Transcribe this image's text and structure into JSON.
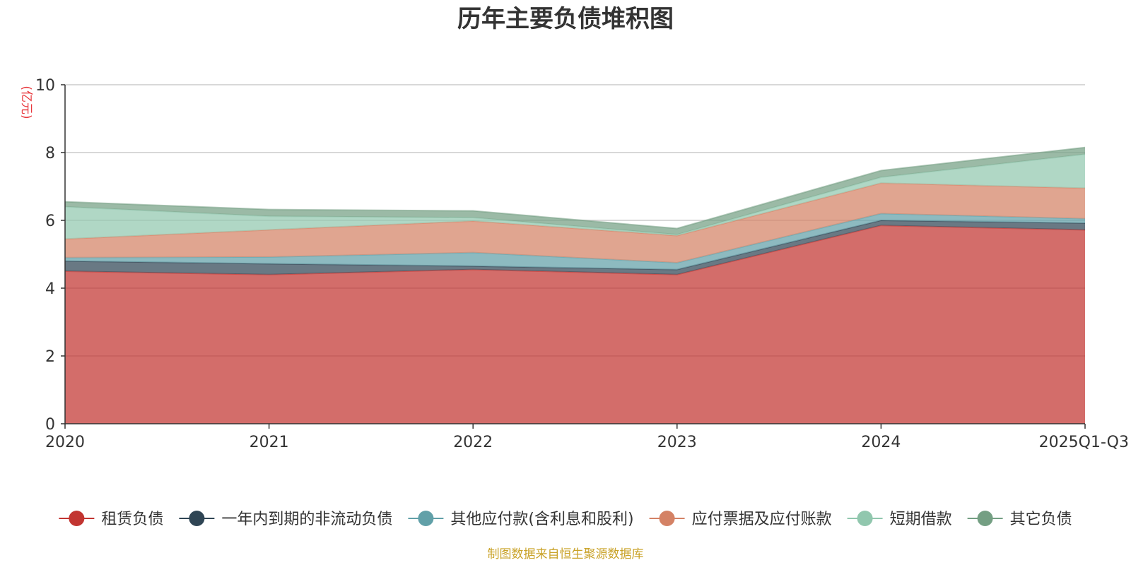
{
  "colors": {
    "source": "#c9a227",
    "unit": "#e8383d",
    "axis": "#333333",
    "grid": "#cccccc"
  },
  "chart_data": {
    "type": "area",
    "stacked": true,
    "title": "历年主要负债堆积图",
    "ylabel": "(亿元)",
    "ylim": [
      0,
      10
    ],
    "yticks": [
      0,
      2,
      4,
      6,
      8,
      10
    ],
    "grid": true,
    "legend_position": "bottom",
    "categories": [
      "2020",
      "2021",
      "2022",
      "2023",
      "2024",
      "2025Q1-Q3"
    ],
    "series": [
      {
        "name": "租赁负债",
        "color": "#c23531",
        "values": [
          4.5,
          4.4,
          4.55,
          4.4,
          5.85,
          5.72
        ]
      },
      {
        "name": "一年内到期的非流动负债",
        "color": "#2f4554",
        "values": [
          0.3,
          0.32,
          0.1,
          0.15,
          0.15,
          0.2
        ]
      },
      {
        "name": "其他应付款(含利息和股利)",
        "color": "#61a0a8",
        "values": [
          0.1,
          0.2,
          0.4,
          0.2,
          0.2,
          0.13
        ]
      },
      {
        "name": "应付票据及应付账款",
        "color": "#d48265",
        "values": [
          0.55,
          0.8,
          0.93,
          0.8,
          0.9,
          0.9
        ]
      },
      {
        "name": "短期借款",
        "color": "#91c7ae",
        "values": [
          0.95,
          0.4,
          0.1,
          0.03,
          0.17,
          1.0
        ]
      },
      {
        "name": "其它负债",
        "color": "#749f83",
        "values": [
          0.15,
          0.2,
          0.2,
          0.18,
          0.2,
          0.2
        ]
      }
    ],
    "source": "制图数据来自恒生聚源数据库"
  }
}
